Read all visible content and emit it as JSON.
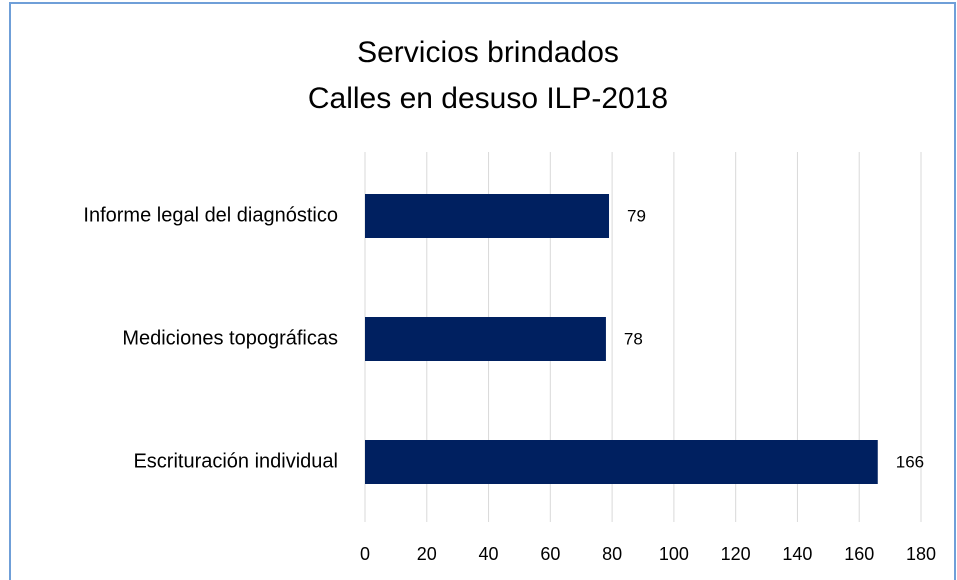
{
  "chart_data": {
    "type": "bar",
    "orientation": "horizontal",
    "title": [
      "Servicios brindados",
      "Calles en desuso ILP-2018"
    ],
    "categories": [
      "Informe legal del diagnóstico",
      "Mediciones topográficas",
      "Escrituración individual"
    ],
    "values": [
      79,
      78,
      166
    ],
    "color": "#002060",
    "xlim": [
      0,
      180
    ],
    "xticks": [
      0,
      20,
      40,
      60,
      80,
      100,
      120,
      140,
      160,
      180
    ],
    "grid": true
  }
}
